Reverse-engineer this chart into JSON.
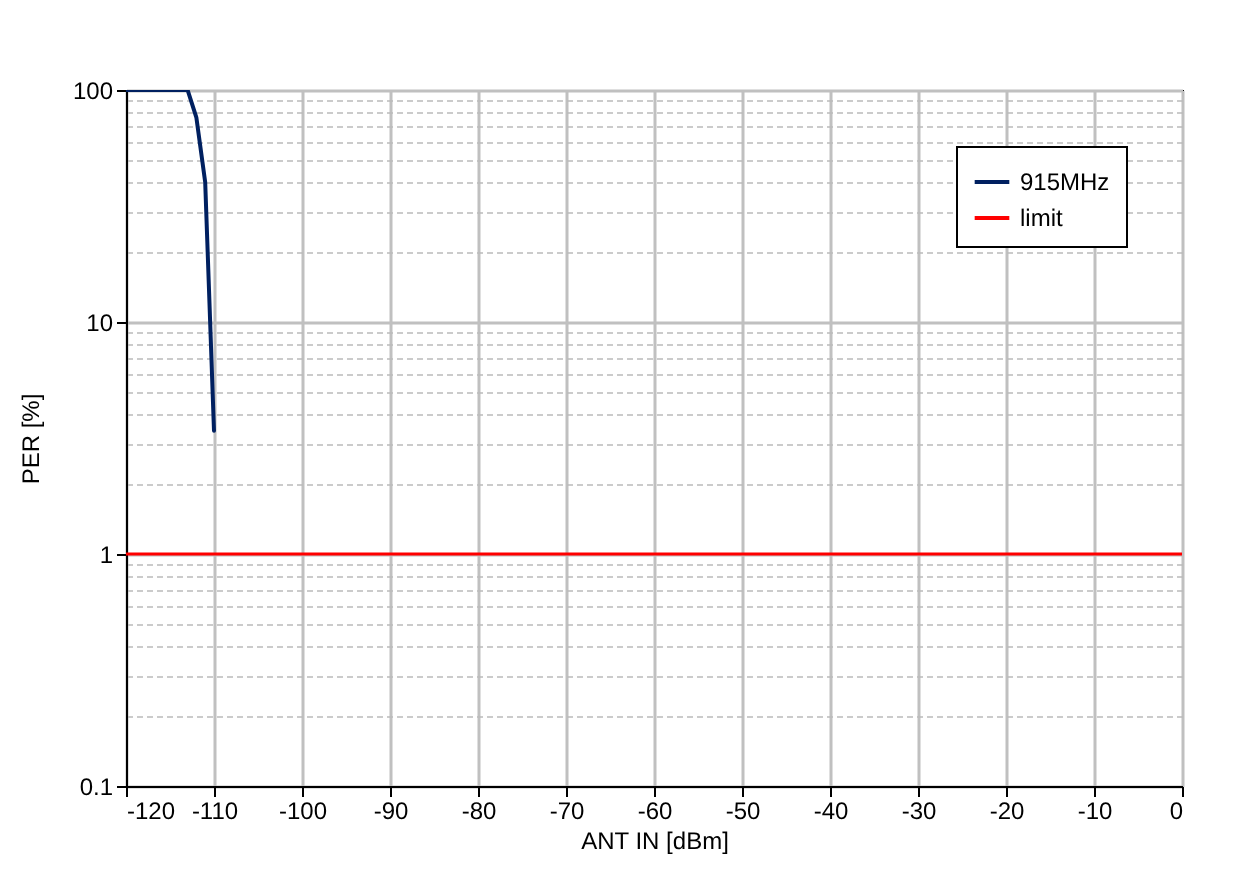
{
  "chart_data": {
    "type": "line",
    "xlabel": "ANT IN [dBm]",
    "ylabel": "PER [%]",
    "log": true,
    "grid": true,
    "legend": "top right",
    "marker": "none",
    "line_style": "solid",
    "x": [
      -120,
      -113,
      -112,
      -111,
      -110
    ],
    "series": [
      {
        "name": "915MHz",
        "color": "#002060",
        "values": [
          100,
          100,
          76,
          40,
          3.4
        ]
      }
    ],
    "ref_lines": [
      {
        "axis": "y",
        "value": 1,
        "label": "limit",
        "color": "#ff0000"
      }
    ],
    "xlim": [
      -120,
      0
    ],
    "xticks": [
      -120,
      -110,
      -100,
      -90,
      -80,
      -70,
      -60,
      -50,
      -40,
      -30,
      -20,
      -10,
      0
    ],
    "ylim": [
      0.1,
      100
    ],
    "yticks": [
      0.1,
      {
        "value": 0.2,
        "label": null
      },
      {
        "value": 0.3,
        "label": null
      },
      {
        "value": 0.4,
        "label": null
      },
      {
        "value": 0.5,
        "label": null
      },
      {
        "value": 0.6,
        "label": null
      },
      {
        "value": 0.7,
        "label": null
      },
      {
        "value": 0.8,
        "label": null
      },
      {
        "value": 0.9,
        "label": null
      },
      1,
      {
        "value": 2,
        "label": null
      },
      {
        "value": 3,
        "label": null
      },
      {
        "value": 4,
        "label": null
      },
      {
        "value": 5,
        "label": null
      },
      {
        "value": 6,
        "label": null
      },
      {
        "value": 7,
        "label": null
      },
      {
        "value": 8,
        "label": null
      },
      {
        "value": 9,
        "label": null
      },
      10,
      {
        "value": 20,
        "label": null
      },
      {
        "value": 30,
        "label": null
      },
      {
        "value": 40,
        "label": null
      },
      {
        "value": 50,
        "label": null
      },
      {
        "value": 60,
        "label": null
      },
      {
        "value": 70,
        "label": null
      },
      {
        "value": 80,
        "label": null
      },
      {
        "value": 90,
        "label": null
      },
      100
    ]
  }
}
